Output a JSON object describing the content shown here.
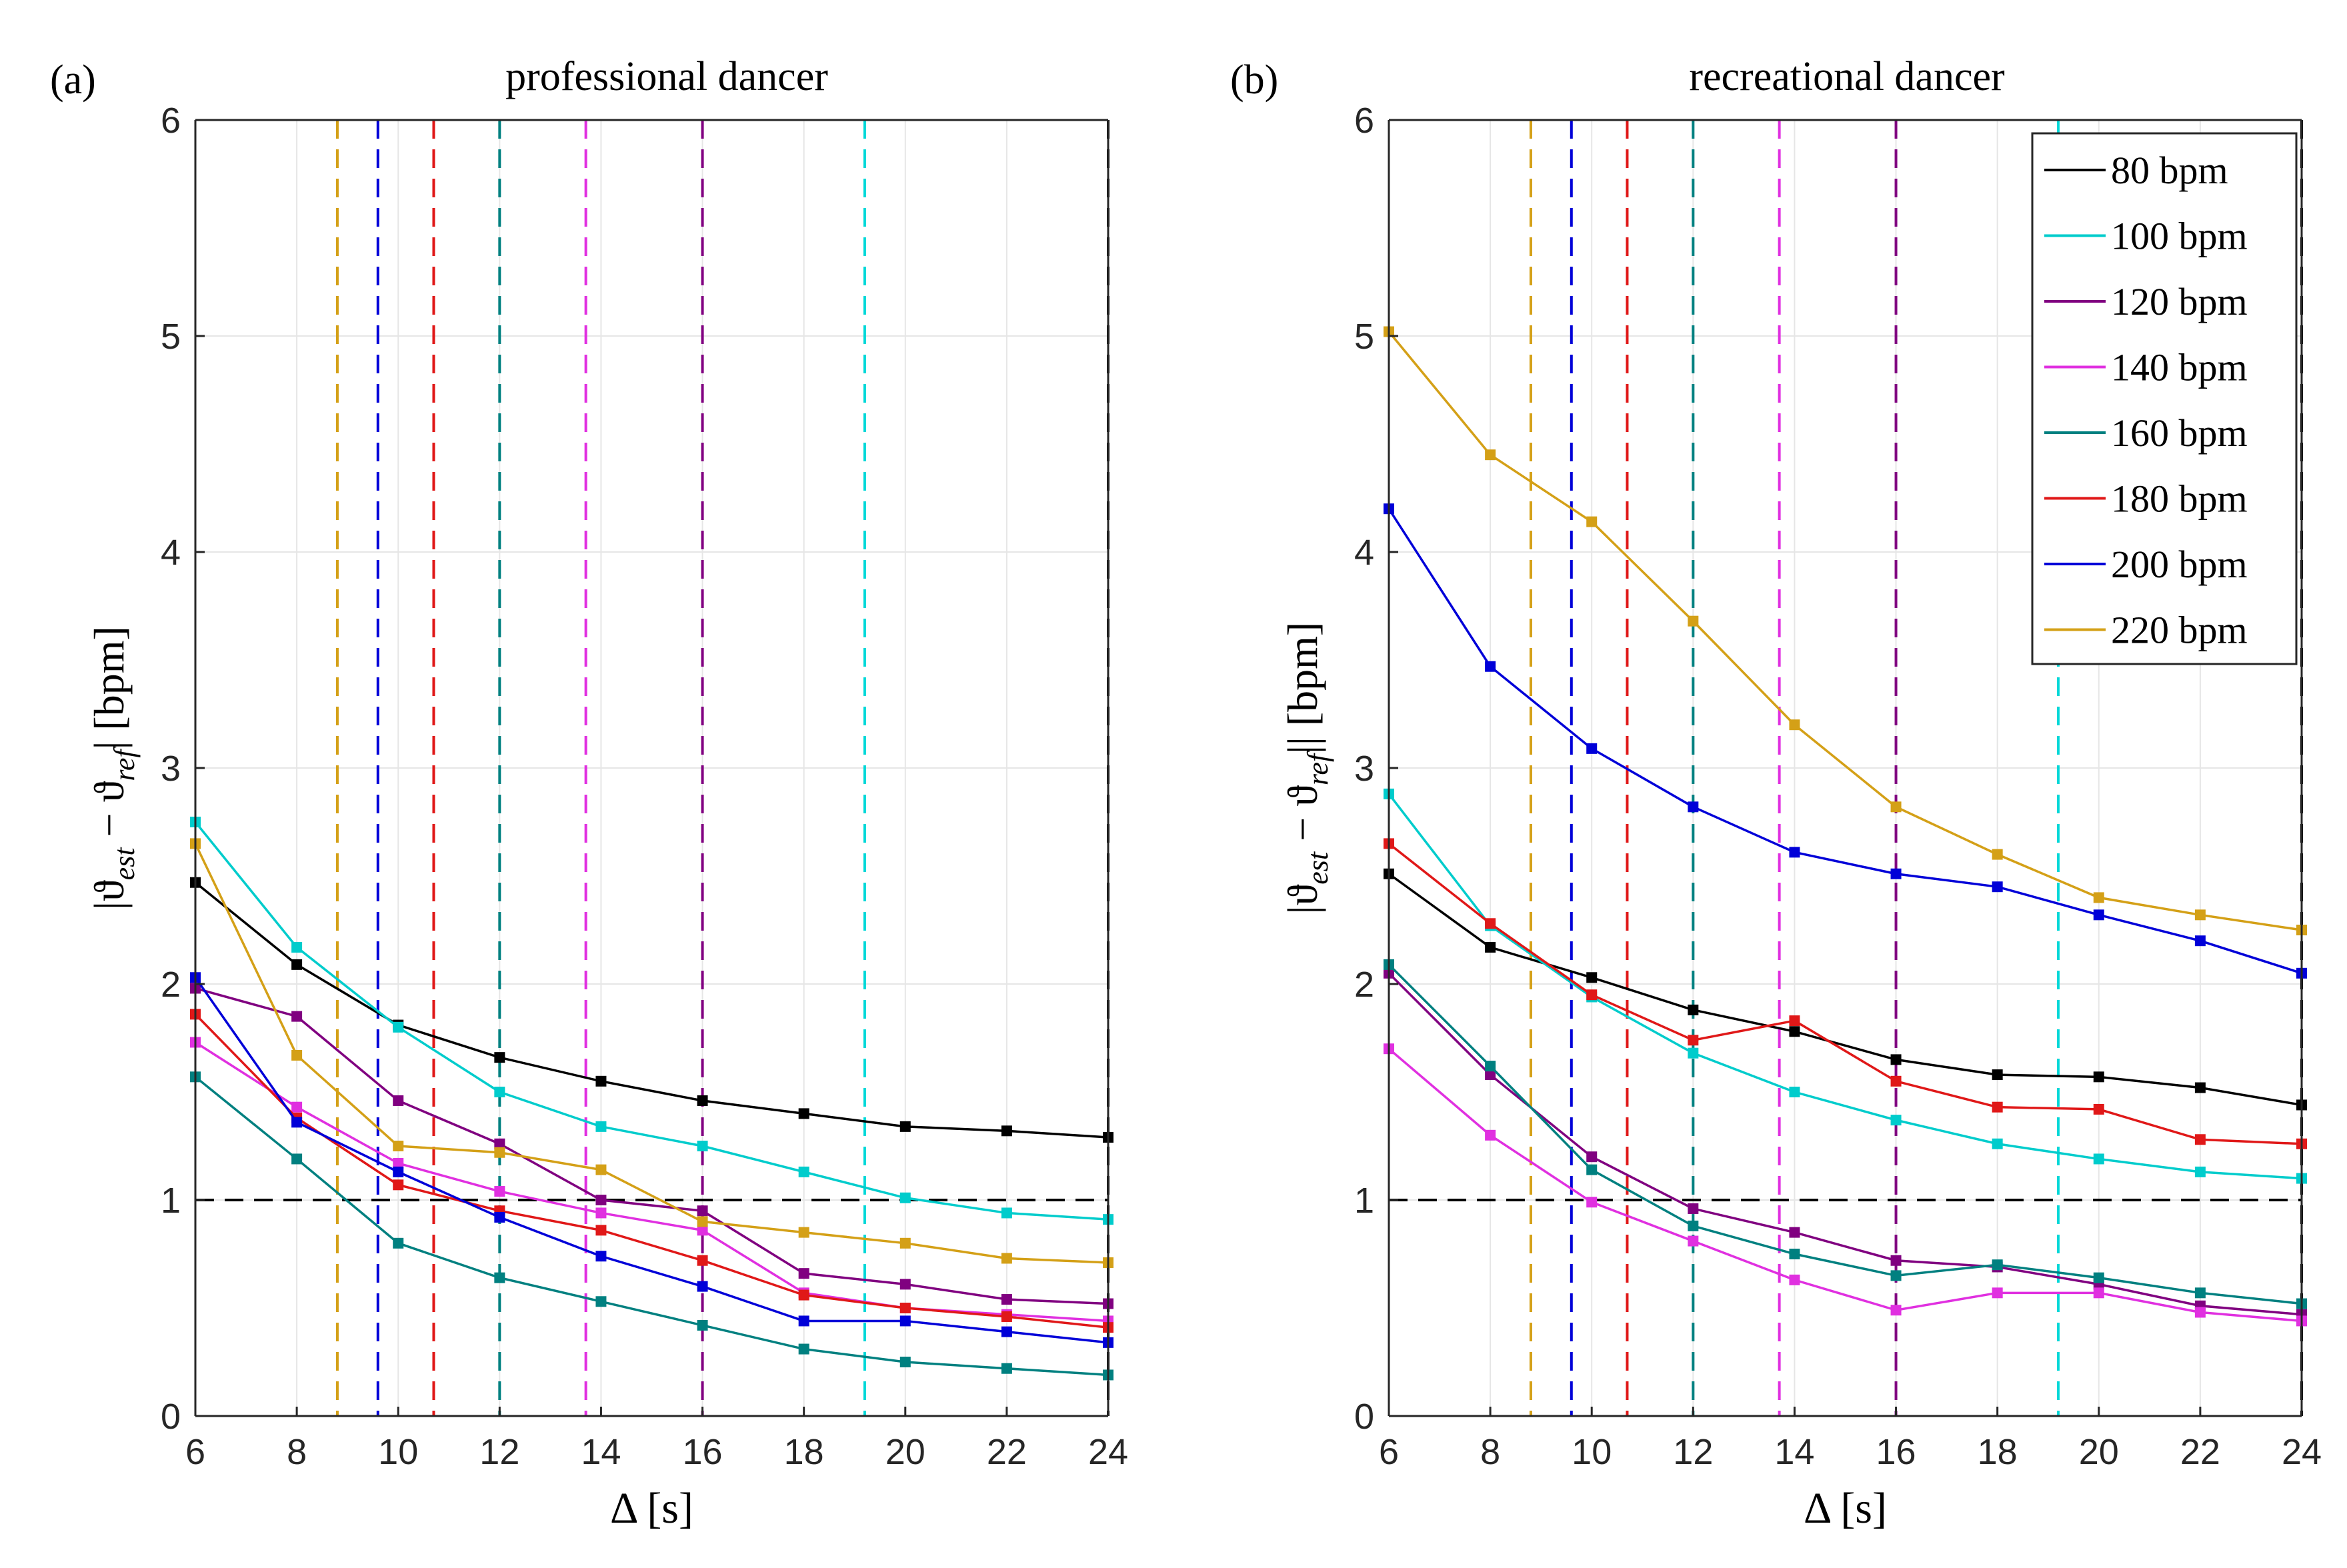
{
  "chart_data": [
    {
      "type": "line",
      "panel_tag": "(a)",
      "title": "professional dancer",
      "xlabel": "Δ [s]",
      "ylabel": "|ϑest − ϑref| [bpm]",
      "ylabel_parts": {
        "pre": "|ϑ",
        "sub1": "est",
        "mid": " − ϑ",
        "sub2": "ref",
        "post": "| [bpm]"
      },
      "xlim": [
        6,
        24
      ],
      "ylim": [
        0,
        6
      ],
      "xticks": [
        6,
        8,
        10,
        12,
        14,
        16,
        18,
        20,
        22,
        24
      ],
      "yticks": [
        0,
        1,
        2,
        3,
        4,
        5,
        6
      ],
      "grid": true,
      "reference_line": {
        "y": 1,
        "color": "#000000",
        "style": "dashed"
      },
      "vertical_lines": [
        {
          "x": 8.8,
          "color": "#D4A017"
        },
        {
          "x": 9.6,
          "color": "#0000D8"
        },
        {
          "x": 10.7,
          "color": "#E01818"
        },
        {
          "x": 12.0,
          "color": "#008080"
        },
        {
          "x": 13.7,
          "color": "#E030E0"
        },
        {
          "x": 16.0,
          "color": "#800080"
        },
        {
          "x": 19.2,
          "color": "#00D8D8"
        },
        {
          "x": 24.0,
          "color": "#000000"
        }
      ],
      "x": [
        6,
        8,
        10,
        12,
        14,
        16,
        18,
        20,
        22,
        24
      ],
      "series": [
        {
          "name": "80 bpm",
          "color": "#000000",
          "values": [
            2.47,
            2.09,
            1.81,
            1.66,
            1.55,
            1.46,
            1.4,
            1.34,
            1.32,
            1.29
          ]
        },
        {
          "name": "100 bpm",
          "color": "#00CCCC",
          "values": [
            2.75,
            2.17,
            1.8,
            1.5,
            1.34,
            1.25,
            1.13,
            1.01,
            0.94,
            0.91
          ]
        },
        {
          "name": "120 bpm",
          "color": "#800080",
          "values": [
            1.98,
            1.85,
            1.46,
            1.26,
            1.0,
            0.95,
            0.66,
            0.61,
            0.54,
            0.52
          ]
        },
        {
          "name": "140 bpm",
          "color": "#E030E0",
          "values": [
            1.73,
            1.43,
            1.17,
            1.04,
            0.94,
            0.86,
            0.57,
            0.5,
            0.47,
            0.44
          ]
        },
        {
          "name": "160 bpm",
          "color": "#008080",
          "values": [
            1.57,
            1.19,
            0.8,
            0.64,
            0.53,
            0.42,
            0.31,
            0.25,
            0.22,
            0.19
          ]
        },
        {
          "name": "180 bpm",
          "color": "#E01818",
          "values": [
            1.86,
            1.38,
            1.07,
            0.95,
            0.86,
            0.72,
            0.56,
            0.5,
            0.46,
            0.41
          ]
        },
        {
          "name": "200 bpm",
          "color": "#0000D8",
          "values": [
            2.03,
            1.36,
            1.13,
            0.92,
            0.74,
            0.6,
            0.44,
            0.44,
            0.39,
            0.34
          ]
        },
        {
          "name": "220 bpm",
          "color": "#D4A017",
          "values": [
            2.65,
            1.67,
            1.25,
            1.22,
            1.14,
            0.9,
            0.85,
            0.8,
            0.73,
            0.71
          ]
        }
      ]
    },
    {
      "type": "line",
      "panel_tag": "(b)",
      "title": "recreational dancer",
      "xlabel": "Δ [s]",
      "ylabel": "|ϑest − ϑref|| [bpm]",
      "ylabel_parts": {
        "pre": "|ϑ",
        "sub1": "est",
        "mid": " − ϑ",
        "sub2": "ref",
        "post": "|| [bpm]"
      },
      "xlim": [
        6,
        24
      ],
      "ylim": [
        0,
        6
      ],
      "xticks": [
        6,
        8,
        10,
        12,
        14,
        16,
        18,
        20,
        22,
        24
      ],
      "yticks": [
        0,
        1,
        2,
        3,
        4,
        5,
        6
      ],
      "grid": true,
      "legend_position": "top-right",
      "reference_line": {
        "y": 1,
        "color": "#000000",
        "style": "dashed"
      },
      "vertical_lines": [
        {
          "x": 8.8,
          "color": "#D4A017"
        },
        {
          "x": 9.6,
          "color": "#0000D8"
        },
        {
          "x": 10.7,
          "color": "#E01818"
        },
        {
          "x": 12.0,
          "color": "#008080"
        },
        {
          "x": 13.7,
          "color": "#E030E0"
        },
        {
          "x": 16.0,
          "color": "#800080"
        },
        {
          "x": 19.2,
          "color": "#00D8D8"
        },
        {
          "x": 24.0,
          "color": "#000000"
        }
      ],
      "x": [
        6,
        8,
        10,
        12,
        14,
        16,
        18,
        20,
        22,
        24
      ],
      "series": [
        {
          "name": "80 bpm",
          "color": "#000000",
          "values": [
            2.51,
            2.17,
            2.03,
            1.88,
            1.78,
            1.65,
            1.58,
            1.57,
            1.52,
            1.44
          ]
        },
        {
          "name": "100 bpm",
          "color": "#00CCCC",
          "values": [
            2.88,
            2.27,
            1.94,
            1.68,
            1.5,
            1.37,
            1.26,
            1.19,
            1.13,
            1.1
          ]
        },
        {
          "name": "120 bpm",
          "color": "#800080",
          "values": [
            2.05,
            1.58,
            1.2,
            0.96,
            0.85,
            0.72,
            0.69,
            0.61,
            0.51,
            0.47
          ]
        },
        {
          "name": "140 bpm",
          "color": "#E030E0",
          "values": [
            1.7,
            1.3,
            0.99,
            0.81,
            0.63,
            0.49,
            0.57,
            0.57,
            0.48,
            0.44
          ]
        },
        {
          "name": "160 bpm",
          "color": "#008080",
          "values": [
            2.09,
            1.62,
            1.14,
            0.88,
            0.75,
            0.65,
            0.7,
            0.64,
            0.57,
            0.52
          ]
        },
        {
          "name": "180 bpm",
          "color": "#E01818",
          "values": [
            2.65,
            2.28,
            1.95,
            1.74,
            1.83,
            1.55,
            1.43,
            1.42,
            1.28,
            1.26
          ]
        },
        {
          "name": "200 bpm",
          "color": "#0000D8",
          "values": [
            4.2,
            3.47,
            3.09,
            2.82,
            2.61,
            2.51,
            2.45,
            2.32,
            2.2,
            2.05
          ]
        },
        {
          "name": "220 bpm",
          "color": "#D4A017",
          "values": [
            5.02,
            4.45,
            4.14,
            3.68,
            3.2,
            2.82,
            2.6,
            2.4,
            2.32,
            2.25
          ]
        }
      ]
    }
  ]
}
